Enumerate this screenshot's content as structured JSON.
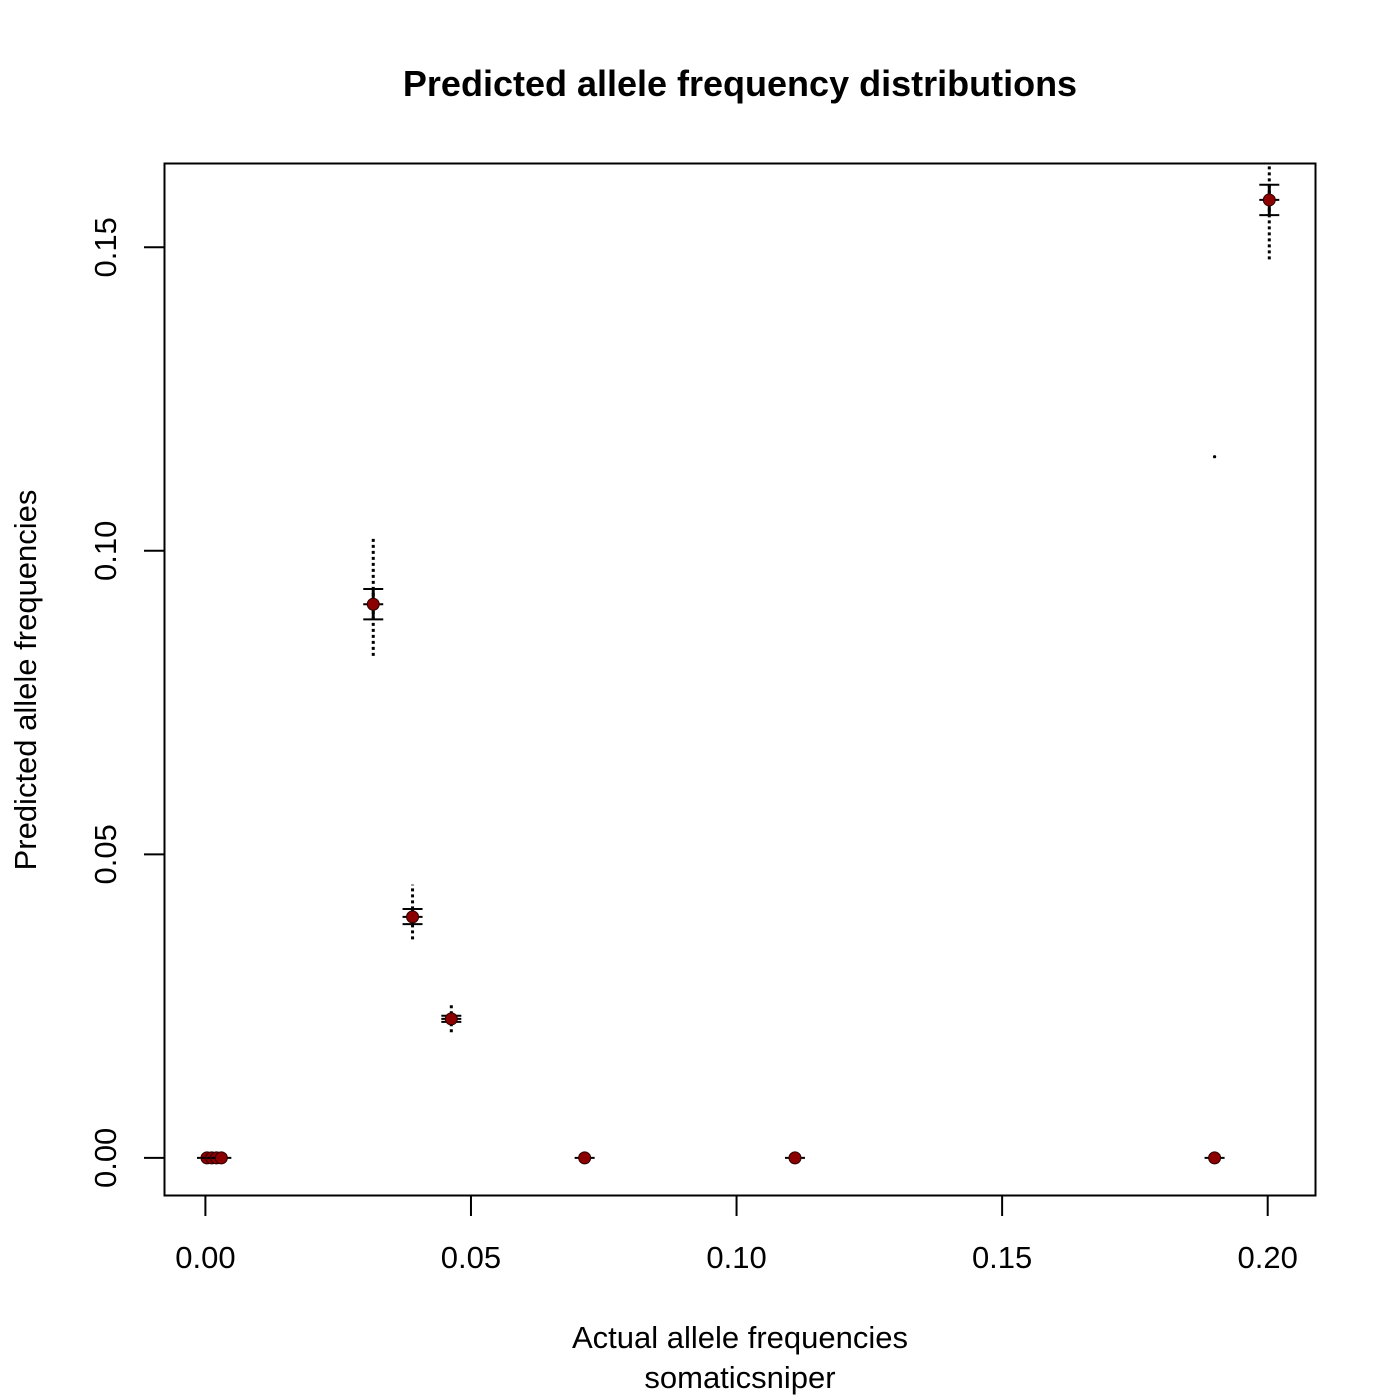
{
  "chart_data": {
    "type": "scatter",
    "title": "Predicted allele frequency distributions",
    "xlabel": "Actual allele frequencies",
    "xlabel_sub": "somaticsniper",
    "ylabel": "Predicted allele frequencies",
    "xlim": [
      -0.0077,
      0.209
    ],
    "ylim": [
      -0.0062,
      0.1638
    ],
    "x_ticks": [
      0.0,
      0.05,
      0.1,
      0.15,
      0.2
    ],
    "x_tick_labels": [
      "0.00",
      "0.05",
      "0.10",
      "0.15",
      "0.20"
    ],
    "y_ticks": [
      0.0,
      0.05,
      0.1,
      0.15
    ],
    "y_tick_labels": [
      "0.00",
      "0.05",
      "0.10",
      "0.15"
    ],
    "grid": false,
    "point_color": "#8b0000",
    "points": [
      {
        "x": 0.0003,
        "y": 0.0,
        "q_low": 0.0,
        "q_high": 0.0,
        "min": 0.0,
        "max": 0.0
      },
      {
        "x": 0.0012,
        "y": 0.0,
        "q_low": 0.0,
        "q_high": 0.0,
        "min": 0.0,
        "max": 0.0
      },
      {
        "x": 0.0021,
        "y": 0.0,
        "q_low": 0.0,
        "q_high": 0.0,
        "min": 0.0,
        "max": 0.0
      },
      {
        "x": 0.003,
        "y": 0.0,
        "q_low": 0.0,
        "q_high": 0.0,
        "min": 0.0,
        "max": 0.0
      },
      {
        "x": 0.0316,
        "y": 0.0912,
        "q_low": 0.0887,
        "q_high": 0.0937,
        "min": 0.0827,
        "max": 0.1022
      },
      {
        "x": 0.039,
        "y": 0.0397,
        "q_low": 0.0385,
        "q_high": 0.041,
        "min": 0.036,
        "max": 0.045
      },
      {
        "x": 0.0463,
        "y": 0.0229,
        "q_low": 0.0224,
        "q_high": 0.0234,
        "min": 0.0207,
        "max": 0.0255
      },
      {
        "x": 0.0714,
        "y": 0.0,
        "q_low": 0.0,
        "q_high": 0.0,
        "min": 0.0,
        "max": 0.0
      },
      {
        "x": 0.111,
        "y": 0.0,
        "q_low": 0.0,
        "q_high": 0.0,
        "min": 0.0,
        "max": 0.0
      },
      {
        "x": 0.19,
        "y": 0.0,
        "q_low": 0.0,
        "q_high": 0.0,
        "min": 0.0,
        "max": 0.0
      },
      {
        "x": 0.2003,
        "y": 0.1578,
        "q_low": 0.1553,
        "q_high": 0.1603,
        "min": 0.148,
        "max": 0.1638
      }
    ],
    "outliers": [
      {
        "x": 0.19,
        "y": 0.1155
      }
    ]
  }
}
